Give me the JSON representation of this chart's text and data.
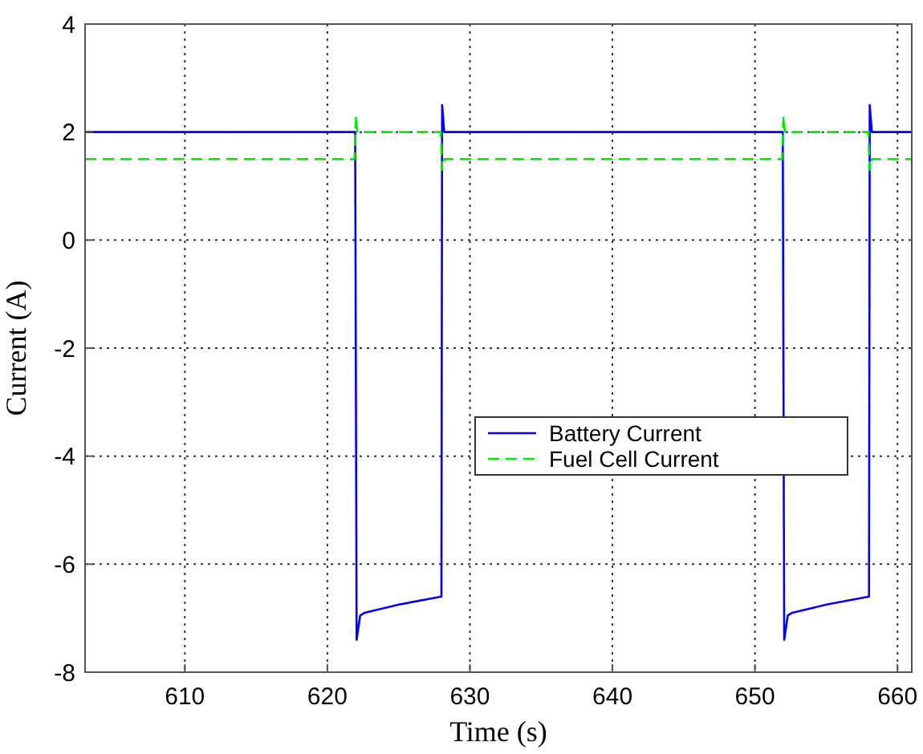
{
  "chart_data": {
    "type": "line",
    "xlabel": "Time (s)",
    "ylabel": "Current (A)",
    "xlim": [
      603,
      661
    ],
    "xticks": [
      610,
      620,
      630,
      640,
      650,
      660
    ],
    "ylim": [
      -8,
      4
    ],
    "yticks": [
      -8,
      -6,
      -4,
      -2,
      0,
      2,
      4
    ],
    "grid": true,
    "legend": "right",
    "series": [
      {
        "name": "Battery Current",
        "color": "#0000ff",
        "line_style": "solid",
        "x": [
          603,
          621.95,
          622.05,
          622.3,
          622.6,
          625,
          628,
          628.05,
          628.2,
          651.95,
          652.05,
          652.3,
          652.6,
          655,
          658,
          658.05,
          658.2,
          661
        ],
        "values": [
          2,
          2,
          -7.4,
          -6.95,
          -6.9,
          -6.75,
          -6.6,
          2.5,
          2,
          2,
          -7.4,
          -6.95,
          -6.9,
          -6.75,
          -6.6,
          2.5,
          2,
          2
        ]
      },
      {
        "name": "Fuel Cell Current",
        "color": "#00ee00",
        "line_style": "dashed",
        "x": [
          603,
          621.9,
          622,
          622.1,
          627.95,
          628.05,
          628.2,
          651.9,
          652,
          652.1,
          657.95,
          658.05,
          658.2,
          661
        ],
        "values": [
          1.5,
          1.5,
          2.3,
          2,
          2,
          1.3,
          1.5,
          1.5,
          2.3,
          2,
          2,
          1.3,
          1.5,
          1.5
        ]
      }
    ]
  }
}
